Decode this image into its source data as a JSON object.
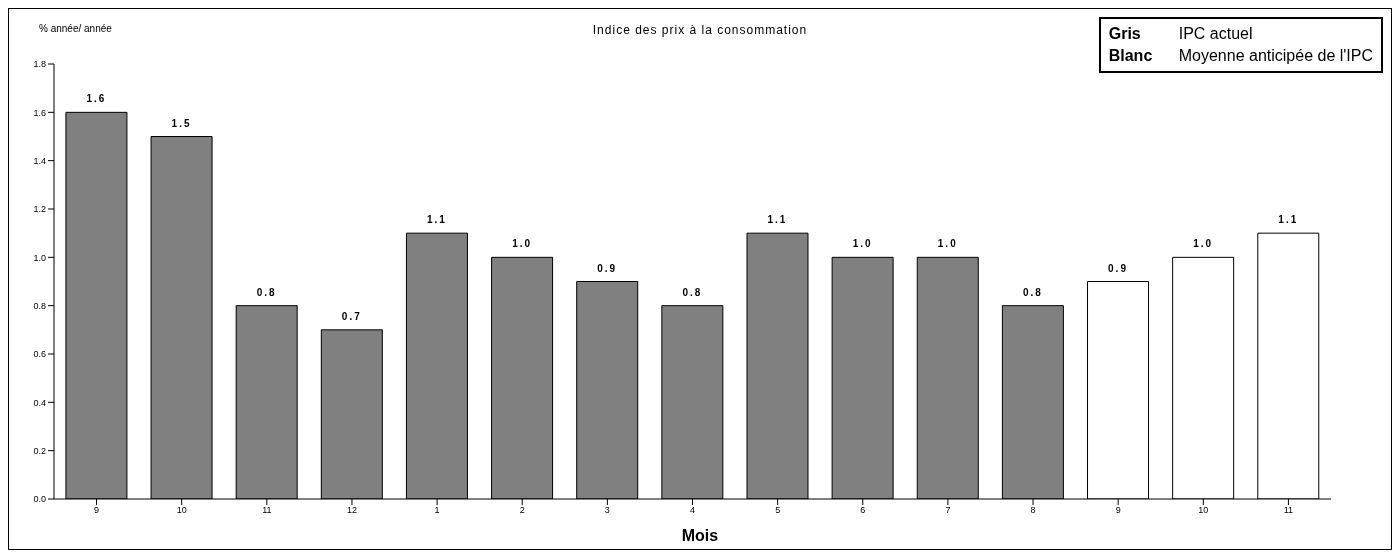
{
  "chart_data": {
    "type": "bar",
    "title": "Indice des prix à la consommation",
    "ylabel": "% année/ année",
    "xlabel": "Mois",
    "categories": [
      "9",
      "10",
      "11",
      "12",
      "1",
      "2",
      "3",
      "4",
      "5",
      "6",
      "7",
      "8",
      "9",
      "10",
      "11"
    ],
    "values": [
      1.6,
      1.5,
      0.8,
      0.7,
      1.1,
      1.0,
      0.9,
      0.8,
      1.1,
      1.0,
      1.0,
      0.8,
      0.9,
      1.0,
      1.1
    ],
    "colors": [
      "#808080",
      "#808080",
      "#808080",
      "#808080",
      "#808080",
      "#808080",
      "#808080",
      "#808080",
      "#808080",
      "#808080",
      "#808080",
      "#808080",
      "#ffffff",
      "#ffffff",
      "#ffffff"
    ],
    "value_labels": [
      "1.6",
      "1.5",
      "0.8",
      "0.7",
      "1.1",
      "1.0",
      "0.9",
      "0.8",
      "1.1",
      "1.0",
      "1.0",
      "0.8",
      "0.9",
      "1.0",
      "1.1"
    ],
    "ylim": [
      0,
      1.8
    ],
    "yticks": [
      {
        "value": 0,
        "label": "0.0"
      },
      0.2,
      0.4,
      0.6,
      0.8,
      {
        "value": 1,
        "label": "1.0"
      },
      1.2,
      1.4,
      1.6,
      1.8
    ],
    "annotations": [
      "Gris",
      "IPC actuel",
      "Blanc",
      "Moyenne anticipée de l'IPC"
    ],
    "grid": false
  }
}
